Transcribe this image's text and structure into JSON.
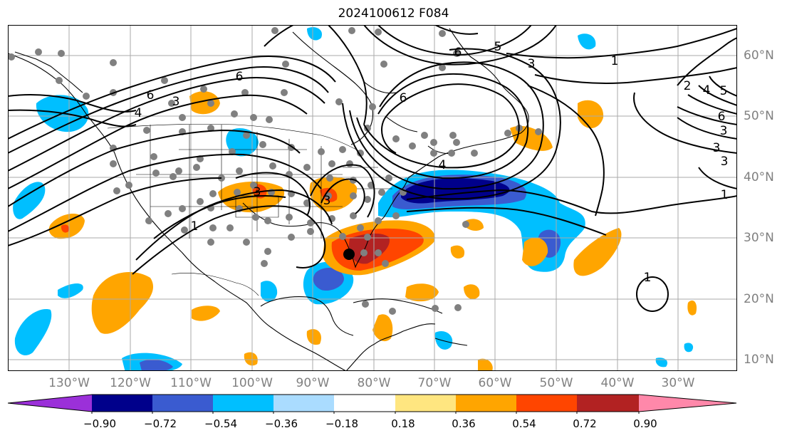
{
  "title": "2024100612 F084",
  "lon_labels": [
    "130°W",
    "120°W",
    "110°W",
    "100°W",
    "90°W",
    "80°W",
    "70°W",
    "60°W",
    "50°W",
    "40°W",
    "30°W"
  ],
  "lat_labels": [
    "60°N",
    "50°N",
    "40°N",
    "30°N",
    "20°N",
    "10°N"
  ],
  "contour_labels": [
    "5",
    "6",
    "3",
    "6",
    "3",
    "2",
    "4",
    "5",
    "6",
    "3",
    "3",
    "1",
    "6",
    "4",
    "3",
    "6",
    "4",
    "3",
    "3",
    "1",
    "1",
    "1"
  ],
  "colorbar": {
    "ticks": [
      "−0.90",
      "−0.72",
      "−0.54",
      "−0.36",
      "−0.18",
      "0.18",
      "0.36",
      "0.54",
      "0.72",
      "0.90"
    ],
    "colors": {
      "below_min": "#9b30d9",
      "neg_090_072": "#00008b",
      "neg_072_054": "#3a5bd0",
      "neg_054_036": "#00bfff",
      "neg_036_018": "#aadcff",
      "neutral": "#ffffff",
      "pos_018_036": "#ffe680",
      "pos_036_054": "#ffa500",
      "pos_054_072": "#ff4500",
      "pos_072_090": "#b22222",
      "above_max": "#ff88aa"
    }
  }
}
